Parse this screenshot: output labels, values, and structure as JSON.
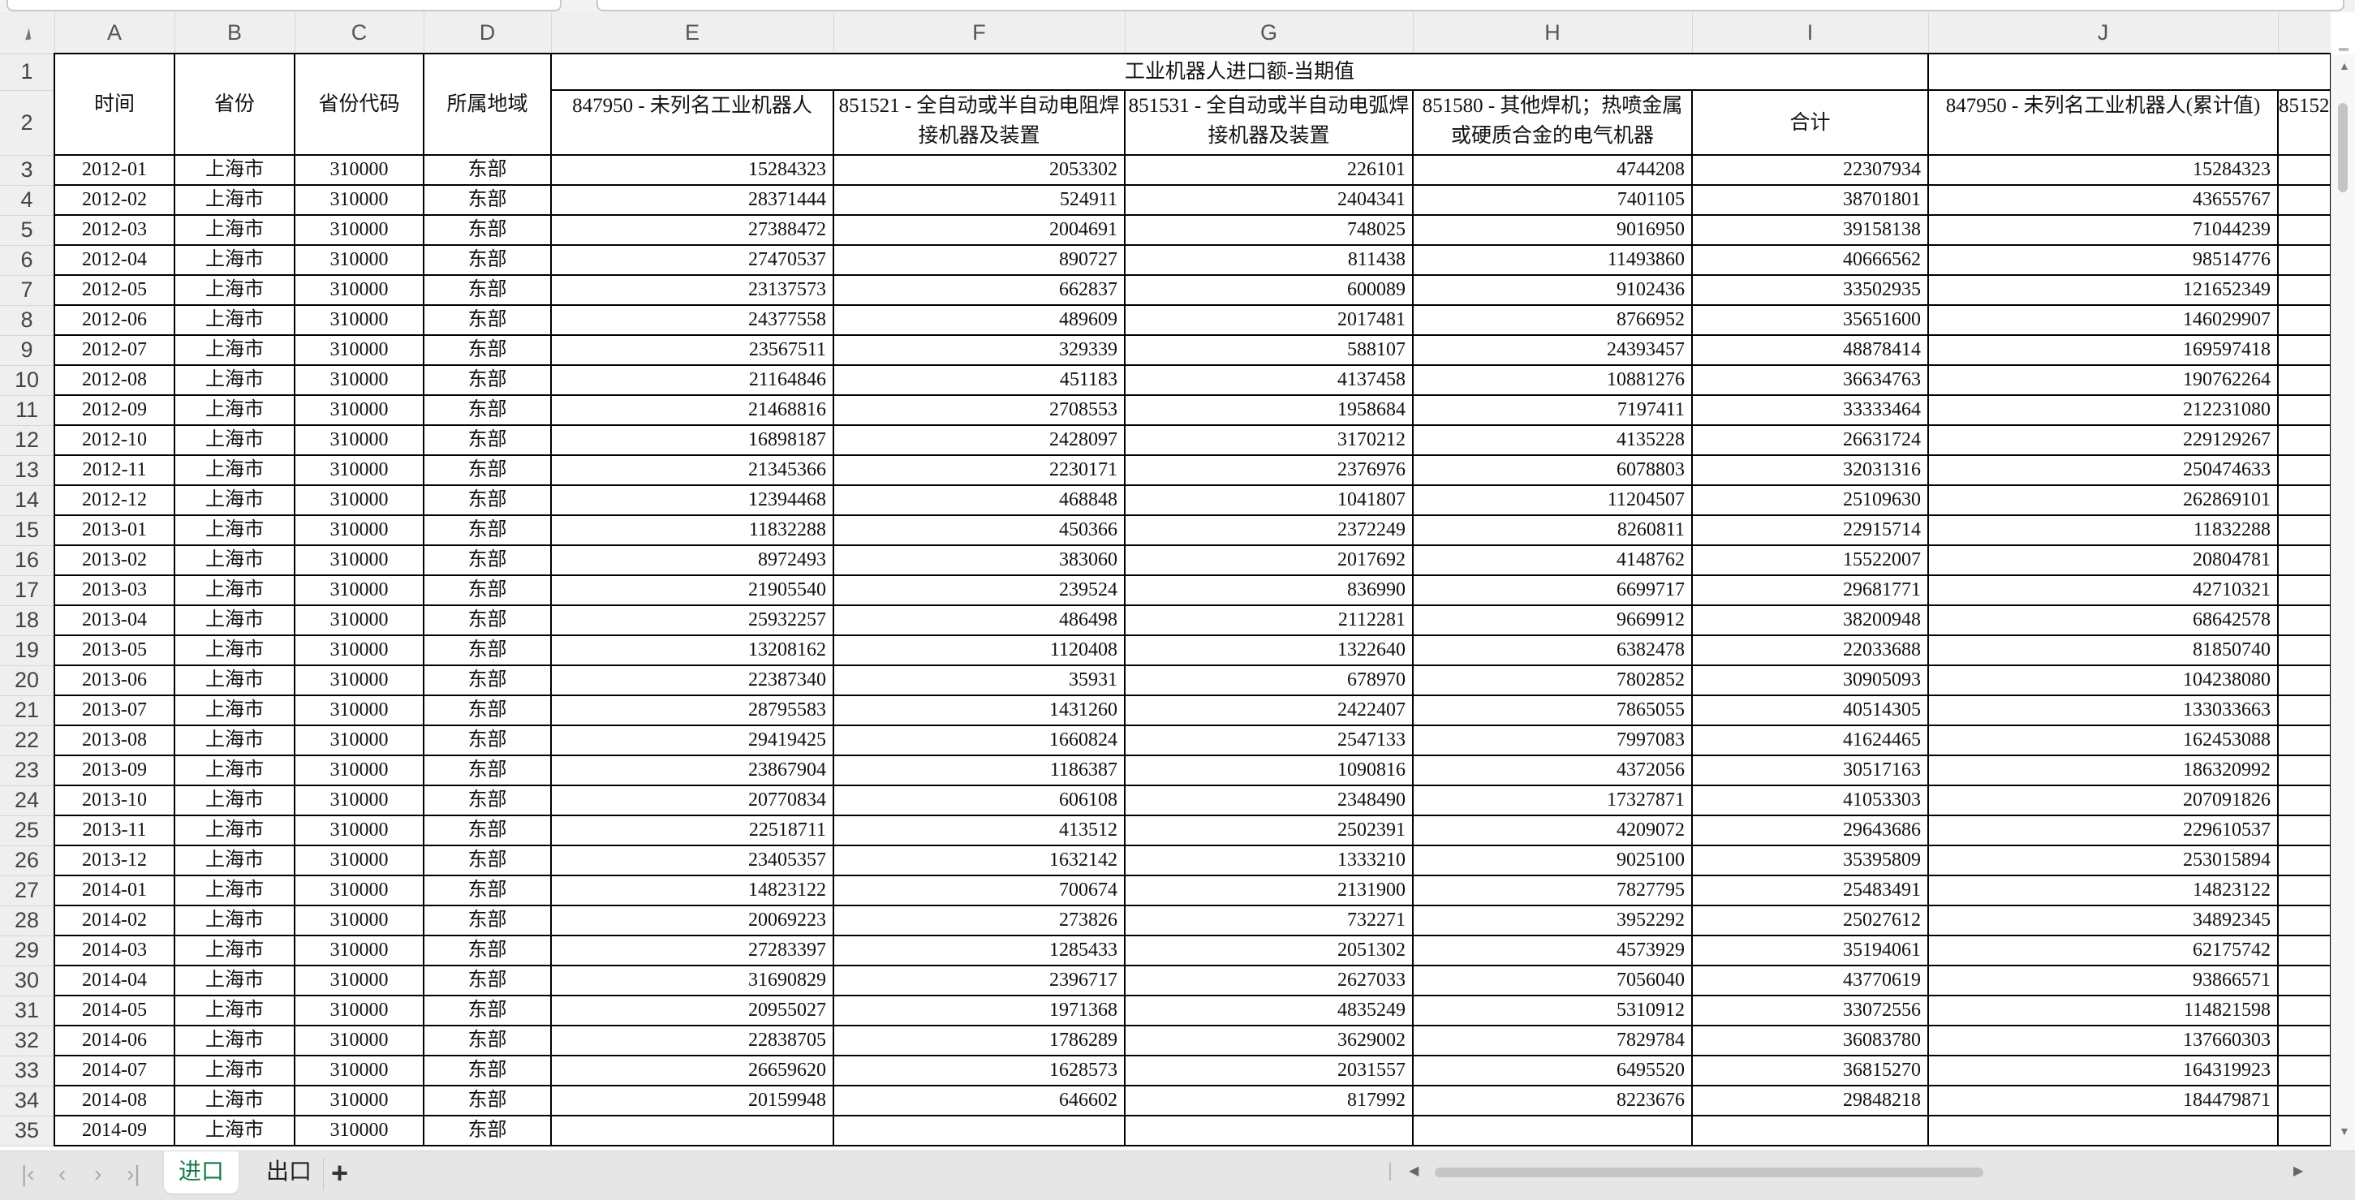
{
  "columns": [
    "A",
    "B",
    "C",
    "D",
    "E",
    "F",
    "G",
    "H",
    "I",
    "J",
    ""
  ],
  "header": {
    "time": "时间",
    "province": "省份",
    "province_code": "省份代码",
    "region": "所属地域",
    "group_title": "工业机器人进口额-当期值",
    "col_e": "847950 - 未列名工业机器人",
    "col_f": "851521 - 全自动或半自动电阻焊接机器及装置",
    "col_g": "851531 - 全自动或半自动电弧焊接机器及装置",
    "col_h": "851580 - 其他焊机；热喷金属或硬质合金的电气机器",
    "col_i": "合计",
    "col_j": "847950 - 未列名工业机器人(累计值)",
    "col_k": "85152"
  },
  "row_numbers_header": [
    "1",
    "2"
  ],
  "rows": [
    {
      "n": "3",
      "cells": [
        "2012-01",
        "上海市",
        "310000",
        "东部",
        "15284323",
        "2053302",
        "226101",
        "4744208",
        "22307934",
        "15284323"
      ]
    },
    {
      "n": "4",
      "cells": [
        "2012-02",
        "上海市",
        "310000",
        "东部",
        "28371444",
        "524911",
        "2404341",
        "7401105",
        "38701801",
        "43655767"
      ]
    },
    {
      "n": "5",
      "cells": [
        "2012-03",
        "上海市",
        "310000",
        "东部",
        "27388472",
        "2004691",
        "748025",
        "9016950",
        "39158138",
        "71044239"
      ]
    },
    {
      "n": "6",
      "cells": [
        "2012-04",
        "上海市",
        "310000",
        "东部",
        "27470537",
        "890727",
        "811438",
        "11493860",
        "40666562",
        "98514776"
      ]
    },
    {
      "n": "7",
      "cells": [
        "2012-05",
        "上海市",
        "310000",
        "东部",
        "23137573",
        "662837",
        "600089",
        "9102436",
        "33502935",
        "121652349"
      ]
    },
    {
      "n": "8",
      "cells": [
        "2012-06",
        "上海市",
        "310000",
        "东部",
        "24377558",
        "489609",
        "2017481",
        "8766952",
        "35651600",
        "146029907"
      ]
    },
    {
      "n": "9",
      "cells": [
        "2012-07",
        "上海市",
        "310000",
        "东部",
        "23567511",
        "329339",
        "588107",
        "24393457",
        "48878414",
        "169597418"
      ]
    },
    {
      "n": "10",
      "cells": [
        "2012-08",
        "上海市",
        "310000",
        "东部",
        "21164846",
        "451183",
        "4137458",
        "10881276",
        "36634763",
        "190762264"
      ]
    },
    {
      "n": "11",
      "cells": [
        "2012-09",
        "上海市",
        "310000",
        "东部",
        "21468816",
        "2708553",
        "1958684",
        "7197411",
        "33333464",
        "212231080"
      ]
    },
    {
      "n": "12",
      "cells": [
        "2012-10",
        "上海市",
        "310000",
        "东部",
        "16898187",
        "2428097",
        "3170212",
        "4135228",
        "26631724",
        "229129267"
      ]
    },
    {
      "n": "13",
      "cells": [
        "2012-11",
        "上海市",
        "310000",
        "东部",
        "21345366",
        "2230171",
        "2376976",
        "6078803",
        "32031316",
        "250474633"
      ]
    },
    {
      "n": "14",
      "cells": [
        "2012-12",
        "上海市",
        "310000",
        "东部",
        "12394468",
        "468848",
        "1041807",
        "11204507",
        "25109630",
        "262869101"
      ]
    },
    {
      "n": "15",
      "cells": [
        "2013-01",
        "上海市",
        "310000",
        "东部",
        "11832288",
        "450366",
        "2372249",
        "8260811",
        "22915714",
        "11832288"
      ]
    },
    {
      "n": "16",
      "cells": [
        "2013-02",
        "上海市",
        "310000",
        "东部",
        "8972493",
        "383060",
        "2017692",
        "4148762",
        "15522007",
        "20804781"
      ]
    },
    {
      "n": "17",
      "cells": [
        "2013-03",
        "上海市",
        "310000",
        "东部",
        "21905540",
        "239524",
        "836990",
        "6699717",
        "29681771",
        "42710321"
      ]
    },
    {
      "n": "18",
      "cells": [
        "2013-04",
        "上海市",
        "310000",
        "东部",
        "25932257",
        "486498",
        "2112281",
        "9669912",
        "38200948",
        "68642578"
      ]
    },
    {
      "n": "19",
      "cells": [
        "2013-05",
        "上海市",
        "310000",
        "东部",
        "13208162",
        "1120408",
        "1322640",
        "6382478",
        "22033688",
        "81850740"
      ]
    },
    {
      "n": "20",
      "cells": [
        "2013-06",
        "上海市",
        "310000",
        "东部",
        "22387340",
        "35931",
        "678970",
        "7802852",
        "30905093",
        "104238080"
      ]
    },
    {
      "n": "21",
      "cells": [
        "2013-07",
        "上海市",
        "310000",
        "东部",
        "28795583",
        "1431260",
        "2422407",
        "7865055",
        "40514305",
        "133033663"
      ]
    },
    {
      "n": "22",
      "cells": [
        "2013-08",
        "上海市",
        "310000",
        "东部",
        "29419425",
        "1660824",
        "2547133",
        "7997083",
        "41624465",
        "162453088"
      ]
    },
    {
      "n": "23",
      "cells": [
        "2013-09",
        "上海市",
        "310000",
        "东部",
        "23867904",
        "1186387",
        "1090816",
        "4372056",
        "30517163",
        "186320992"
      ]
    },
    {
      "n": "24",
      "cells": [
        "2013-10",
        "上海市",
        "310000",
        "东部",
        "20770834",
        "606108",
        "2348490",
        "17327871",
        "41053303",
        "207091826"
      ]
    },
    {
      "n": "25",
      "cells": [
        "2013-11",
        "上海市",
        "310000",
        "东部",
        "22518711",
        "413512",
        "2502391",
        "4209072",
        "29643686",
        "229610537"
      ]
    },
    {
      "n": "26",
      "cells": [
        "2013-12",
        "上海市",
        "310000",
        "东部",
        "23405357",
        "1632142",
        "1333210",
        "9025100",
        "35395809",
        "253015894"
      ]
    },
    {
      "n": "27",
      "cells": [
        "2014-01",
        "上海市",
        "310000",
        "东部",
        "14823122",
        "700674",
        "2131900",
        "7827795",
        "25483491",
        "14823122"
      ]
    },
    {
      "n": "28",
      "cells": [
        "2014-02",
        "上海市",
        "310000",
        "东部",
        "20069223",
        "273826",
        "732271",
        "3952292",
        "25027612",
        "34892345"
      ]
    },
    {
      "n": "29",
      "cells": [
        "2014-03",
        "上海市",
        "310000",
        "东部",
        "27283397",
        "1285433",
        "2051302",
        "4573929",
        "35194061",
        "62175742"
      ]
    },
    {
      "n": "30",
      "cells": [
        "2014-04",
        "上海市",
        "310000",
        "东部",
        "31690829",
        "2396717",
        "2627033",
        "7056040",
        "43770619",
        "93866571"
      ]
    },
    {
      "n": "31",
      "cells": [
        "2014-05",
        "上海市",
        "310000",
        "东部",
        "20955027",
        "1971368",
        "4835249",
        "5310912",
        "33072556",
        "114821598"
      ]
    },
    {
      "n": "32",
      "cells": [
        "2014-06",
        "上海市",
        "310000",
        "东部",
        "22838705",
        "1786289",
        "3629002",
        "7829784",
        "36083780",
        "137660303"
      ]
    },
    {
      "n": "33",
      "cells": [
        "2014-07",
        "上海市",
        "310000",
        "东部",
        "26659620",
        "1628573",
        "2031557",
        "6495520",
        "36815270",
        "164319923"
      ]
    },
    {
      "n": "34",
      "cells": [
        "2014-08",
        "上海市",
        "310000",
        "东部",
        "20159948",
        "646602",
        "817992",
        "8223676",
        "29848218",
        "184479871"
      ]
    },
    {
      "n": "35",
      "cells": [
        "2014-09",
        "上海市",
        "310000",
        "东部",
        "",
        "",
        "",
        "",
        "",
        ""
      ]
    }
  ],
  "sheet_tabs": [
    {
      "label": "进口",
      "active": true
    },
    {
      "label": "出口",
      "active": false
    }
  ],
  "add_sheet": "+",
  "colors": {
    "active_tab_text": "#177a48",
    "grid_border": "#000000",
    "header_bg": "#efefef"
  }
}
